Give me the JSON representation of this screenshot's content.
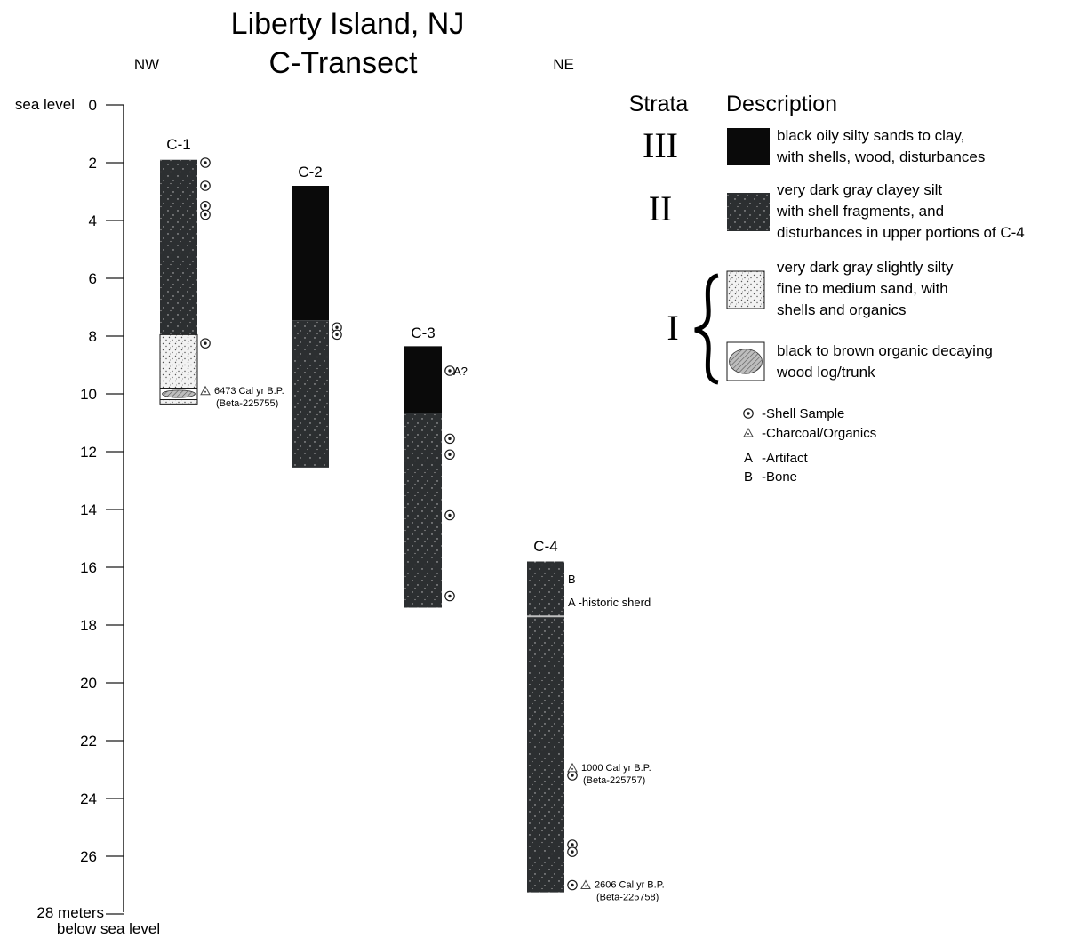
{
  "title": {
    "line1": "Liberty Island, NJ",
    "line2": "C-Transect"
  },
  "directions": {
    "left": "NW",
    "right": "NE"
  },
  "axis": {
    "top_label": "sea level",
    "bottom_label_1": "28 meters",
    "bottom_label_2": "below sea level",
    "ticks": [
      {
        "v": 0,
        "label": "0"
      },
      {
        "v": 2,
        "label": "2"
      },
      {
        "v": 4,
        "label": "4"
      },
      {
        "v": 6,
        "label": "6"
      },
      {
        "v": 8,
        "label": "8"
      },
      {
        "v": 10,
        "label": "10"
      },
      {
        "v": 12,
        "label": "12"
      },
      {
        "v": 14,
        "label": "14"
      },
      {
        "v": 16,
        "label": "16"
      },
      {
        "v": 18,
        "label": "18"
      },
      {
        "v": 20,
        "label": "20"
      },
      {
        "v": 22,
        "label": "22"
      },
      {
        "v": 24,
        "label": "24"
      },
      {
        "v": 26,
        "label": "26"
      },
      {
        "v": 28,
        "label": ""
      }
    ]
  },
  "cores": [
    {
      "id": "c1",
      "label": "C-1",
      "segments": [
        {
          "type": "II",
          "from": 1.9,
          "to": 7.95
        },
        {
          "type": "Isand",
          "from": 7.95,
          "to": 9.8
        },
        {
          "type": "Iwood",
          "from": 9.8,
          "to": 10.2
        },
        {
          "type": "Isand",
          "from": 10.2,
          "to": 10.35
        }
      ],
      "shells": [
        2.0,
        2.8,
        3.5,
        3.8,
        8.25
      ],
      "annotations": [
        {
          "depth": 9.9,
          "symbol": "charcoal",
          "text": "6473 Cal yr B.P.",
          "text2": "(Beta-225755)"
        }
      ]
    },
    {
      "id": "c2",
      "label": "C-2",
      "segments": [
        {
          "type": "III",
          "from": 2.8,
          "to": 7.45
        },
        {
          "type": "II",
          "from": 7.45,
          "to": 12.55
        }
      ],
      "shells": [
        7.7,
        7.95
      ],
      "annotations": []
    },
    {
      "id": "c3",
      "label": "C-3",
      "segments": [
        {
          "type": "III",
          "from": 8.35,
          "to": 10.65
        },
        {
          "type": "II",
          "from": 10.65,
          "to": 17.4
        }
      ],
      "shells": [
        9.2,
        11.55,
        12.1,
        14.2,
        17.0
      ],
      "annotations": [
        {
          "depth": 9.2,
          "symbol": "none",
          "text": "A?",
          "text2": ""
        }
      ]
    },
    {
      "id": "c4",
      "label": "C-4",
      "segments": [
        {
          "type": "II",
          "from": 15.8,
          "to": 27.25
        }
      ],
      "line_at": 17.7,
      "shells": [
        23.2,
        25.6,
        25.85,
        27.0
      ],
      "annotations": [
        {
          "depth": 16.4,
          "symbol": "none",
          "text": "B",
          "text2": ""
        },
        {
          "depth": 17.2,
          "symbol": "none",
          "text": "A -historic sherd",
          "text2": ""
        },
        {
          "depth": 22.95,
          "symbol": "charcoal",
          "text": "1000 Cal yr B.P.",
          "text2": "(Beta-225757)"
        },
        {
          "depth": 27.0,
          "symbol": "charcoal",
          "text": "2606 Cal yr B.P.",
          "text2": "(Beta-225758)"
        }
      ]
    }
  ],
  "legend": {
    "strata_header": "Strata",
    "description_header": "Description",
    "items": [
      {
        "id": "III",
        "roman": "III",
        "type": "III",
        "lines": [
          "black oily silty sands to clay,",
          "with shells, wood, disturbances"
        ]
      },
      {
        "id": "II",
        "roman": "II",
        "type": "II",
        "lines": [
          "very dark gray clayey silt",
          "with shell fragments, and",
          "disturbances in upper portions of C-4"
        ]
      },
      {
        "id": "Isand",
        "roman": "I",
        "type": "Isand",
        "lines": [
          "very dark gray slightly  silty",
          "fine to medium sand, with",
          "shells and organics"
        ]
      },
      {
        "id": "Iwood",
        "roman": "",
        "type": "Iwood",
        "lines": [
          "black to brown organic decaying",
          "wood log/trunk"
        ]
      }
    ],
    "symbols": [
      {
        "id": "shell",
        "symbol": "shell",
        "text": "-Shell Sample"
      },
      {
        "id": "charcoal",
        "symbol": "charcoal",
        "text": "-Charcoal/Organics"
      },
      {
        "id": "artifact",
        "symbol": "A",
        "text": "-Artifact"
      },
      {
        "id": "bone",
        "symbol": "B",
        "text": "-Bone"
      }
    ]
  },
  "colors": {
    "stratum_III": "#0a0a0a",
    "stratum_II": "#2c2f31",
    "stratum_I_sand": "#f2f2f2",
    "ink": "#1a1a1a"
  }
}
